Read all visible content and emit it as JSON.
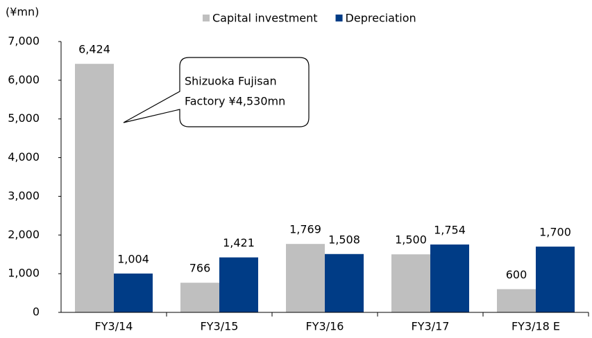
{
  "chart_data": {
    "type": "bar",
    "unit_label": "(¥mn)",
    "categories": [
      "FY3/14",
      "FY3/15",
      "FY3/16",
      "FY3/17",
      "FY3/18 E"
    ],
    "series": [
      {
        "name": "Capital investment",
        "color": "#bfbfbf",
        "values": [
          6424,
          766,
          1769,
          1500,
          600
        ],
        "value_labels": [
          "6,424",
          "766",
          "1,769",
          "1,500",
          "600"
        ]
      },
      {
        "name": "Depreciation",
        "color": "#003c86",
        "values": [
          1004,
          1421,
          1508,
          1754,
          1700
        ],
        "value_labels": [
          "1,004",
          "1,421",
          "1,508",
          "1,754",
          "1,700"
        ]
      }
    ],
    "ylim": [
      0,
      7000
    ],
    "yticks": [
      0,
      {
        "value": 1000,
        "label": "1,000"
      },
      {
        "value": 2000,
        "label": "2,000"
      },
      {
        "value": 3000,
        "label": "3,000"
      },
      {
        "value": 4000,
        "label": "4,000"
      },
      {
        "value": 5000,
        "label": "5,000"
      },
      {
        "value": 6000,
        "label": "6,000"
      },
      {
        "value": 7000,
        "label": "7,000"
      }
    ],
    "grid": false,
    "legend": "top",
    "annotation": [
      "Shizuoka Fujisan",
      "Factory ¥4,530mn"
    ]
  }
}
